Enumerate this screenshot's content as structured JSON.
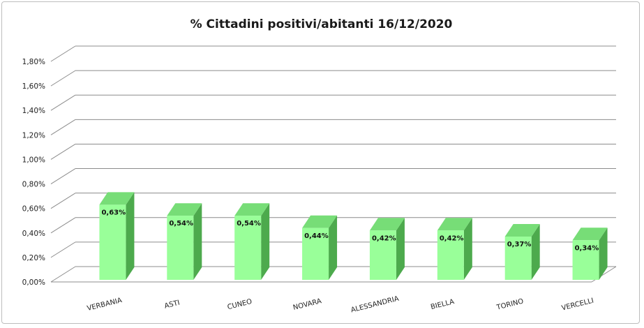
{
  "chart_data": {
    "type": "bar",
    "title": "% Cittadini positivi/abitanti 16/12/2020",
    "xlabel": "",
    "ylabel": "",
    "ylim": [
      0,
      1.8
    ],
    "y_step": 0.2,
    "y_tick_labels": [
      "0,00%",
      "0,20%",
      "0,40%",
      "0,60%",
      "0,80%",
      "1,00%",
      "1,20%",
      "1,40%",
      "1,60%",
      "1,80%"
    ],
    "categories": [
      "VERBANIA",
      "ASTI",
      "CUNEO",
      "NOVARA",
      "ALESSANDRIA",
      "BIELLA",
      "TORINO",
      "VERCELLI"
    ],
    "values": [
      0.63,
      0.54,
      0.54,
      0.44,
      0.42,
      0.42,
      0.37,
      0.34
    ],
    "data_labels": [
      "0,63%",
      "0,54%",
      "0,54%",
      "0,44%",
      "0,42%",
      "0,42%",
      "0,37%",
      "0,34%"
    ],
    "grid": true,
    "legend": "none",
    "style": "3d-column",
    "colors": {
      "bar_front": "#99ff99",
      "bar_side": "#4daa4d",
      "bar_top": "#77dd77",
      "grid": "#8c8c8c"
    }
  }
}
